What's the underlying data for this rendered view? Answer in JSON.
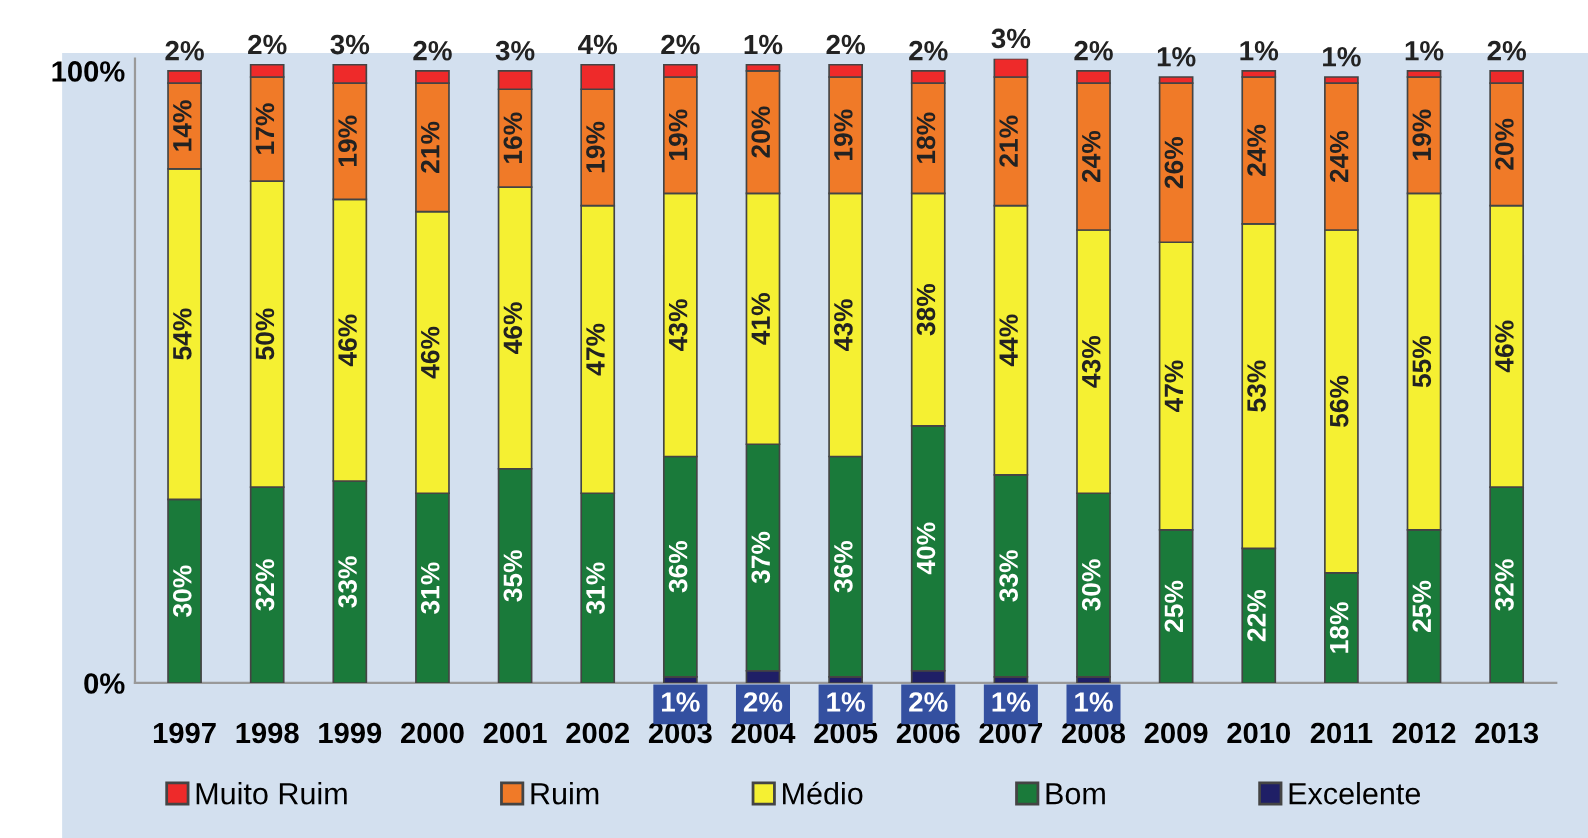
{
  "chart_data": {
    "type": "bar",
    "stacked": true,
    "categories": [
      "1997",
      "1998",
      "1999",
      "2000",
      "2001",
      "2002",
      "2003",
      "2004",
      "2005",
      "2006",
      "2007",
      "2008",
      "2009",
      "2010",
      "2011",
      "2012",
      "2013"
    ],
    "series": [
      {
        "name": "Excelente",
        "color": "#1f1f66",
        "values": [
          null,
          null,
          null,
          null,
          null,
          null,
          1,
          2,
          1,
          2,
          1,
          1,
          null,
          null,
          null,
          null,
          null
        ],
        "value_labels": [
          null,
          null,
          null,
          null,
          null,
          null,
          "1%",
          "2%",
          "1%",
          "2%",
          "1%",
          "1%",
          null,
          null,
          null,
          null,
          null
        ]
      },
      {
        "name": "Bom",
        "color": "#1a7a3a",
        "values": [
          30,
          32,
          33,
          31,
          35,
          31,
          36,
          37,
          36,
          40,
          33,
          30,
          25,
          22,
          18,
          25,
          32
        ],
        "value_labels": [
          "30%",
          "32%",
          "33%",
          "31%",
          "35%",
          "31%",
          "36%",
          "37%",
          "36%",
          "40%",
          "33%",
          "30%",
          "25%",
          "22%",
          "18%",
          "25%",
          "32%"
        ]
      },
      {
        "name": "Médio",
        "color": "#f5f032",
        "values": [
          54,
          50,
          46,
          46,
          46,
          47,
          43,
          41,
          43,
          38,
          44,
          43,
          47,
          53,
          56,
          55,
          46
        ],
        "value_labels": [
          "54%",
          "50%",
          "46%",
          "46%",
          "46%",
          "47%",
          "43%",
          "41%",
          "43%",
          "38%",
          "44%",
          "43%",
          "47%",
          "53%",
          "56%",
          "55%",
          "46%"
        ]
      },
      {
        "name": "Ruim",
        "color": "#f07a28",
        "values": [
          14,
          17,
          19,
          21,
          16,
          19,
          19,
          20,
          19,
          18,
          21,
          24,
          26,
          24,
          24,
          19,
          20
        ],
        "value_labels": [
          "14%",
          "17%",
          "19%",
          "21%",
          "16%",
          "19%",
          "19%",
          "20%",
          "19%",
          "18%",
          "21%",
          "24%",
          "26%",
          "24%",
          "24%",
          "19%",
          "20%"
        ]
      },
      {
        "name": "Muito Ruim",
        "color": "#ee2a2a",
        "values": [
          2,
          2,
          3,
          2,
          3,
          4,
          2,
          1,
          2,
          2,
          3,
          2,
          1,
          1,
          1,
          1,
          2
        ],
        "value_labels": [
          "2%",
          "2%",
          "3%",
          "2%",
          "3%",
          "4%",
          "2%",
          "1%",
          "2%",
          "2%",
          "3%",
          "2%",
          "1%",
          "1%",
          "1%",
          "1%",
          "2%"
        ]
      }
    ],
    "ylim": [
      0,
      102
    ],
    "yticks": [
      {
        "value": 0,
        "label": "0%"
      },
      {
        "value": 100,
        "label": "100%"
      }
    ],
    "grid": false,
    "legend": "bottom"
  }
}
